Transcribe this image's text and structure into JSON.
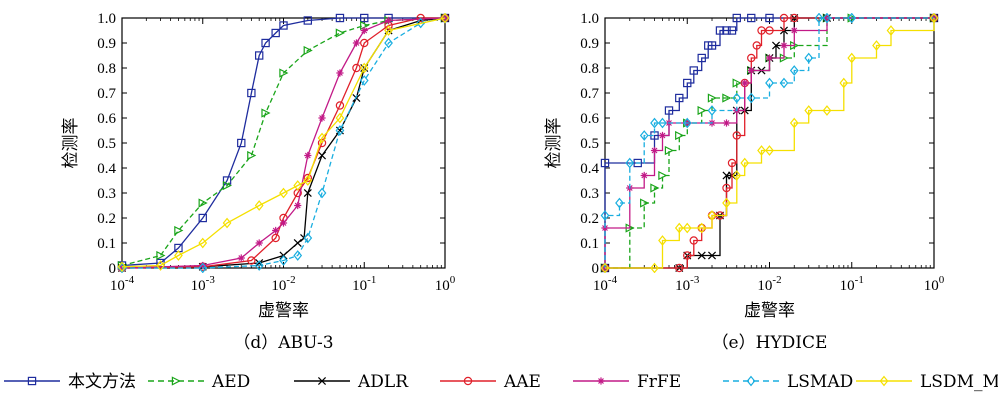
{
  "x_ticks": [
    {
      "base": "10",
      "exp": "-4"
    },
    {
      "base": "10",
      "exp": "-3"
    },
    {
      "base": "10",
      "exp": "-2"
    },
    {
      "base": "10",
      "exp": "-1"
    },
    {
      "base": "10",
      "exp": "0"
    }
  ],
  "y_ticks": [
    "0",
    "0.1",
    "0.2",
    "0.3",
    "0.4",
    "0.5",
    "0.6",
    "0.7",
    "0.8",
    "0.9",
    "1.0"
  ],
  "legend": [
    {
      "label": "本文方法",
      "color": "#1f2d9e",
      "marker": "square"
    },
    {
      "label": "AED",
      "color": "#1aa51a",
      "marker": "triangle",
      "dash": true
    },
    {
      "label": "ADLR",
      "color": "#000000",
      "marker": "x"
    },
    {
      "label": "AAE",
      "color": "#e0202a",
      "marker": "circle"
    },
    {
      "label": "FrFE",
      "color": "#c21a87",
      "marker": "star"
    },
    {
      "label": "LSMAD",
      "color": "#19aee0",
      "marker": "diamond",
      "dash": true
    },
    {
      "label": "LSDM_Mog",
      "color": "#f5e000",
      "marker": "diamond"
    }
  ],
  "chart_data": [
    {
      "type": "line",
      "caption": "（d）ABU-3",
      "xlabel": "虚警率",
      "ylabel": "检测率",
      "xscale": "log",
      "xlim": [
        0.0001,
        1
      ],
      "ylim": [
        0,
        1
      ],
      "series": [
        {
          "name": "本文方法",
          "x": [
            0.0001,
            0.0003,
            0.0005,
            0.001,
            0.002,
            0.003,
            0.004,
            0.005,
            0.006,
            0.008,
            0.01,
            0.02,
            0.05,
            0.1,
            0.2,
            1
          ],
          "y": [
            0.01,
            0.02,
            0.08,
            0.2,
            0.35,
            0.5,
            0.7,
            0.85,
            0.9,
            0.94,
            0.97,
            0.99,
            1,
            1,
            1,
            1
          ]
        },
        {
          "name": "AED",
          "x": [
            0.0001,
            0.0003,
            0.0005,
            0.001,
            0.002,
            0.004,
            0.006,
            0.01,
            0.02,
            0.05,
            0.1,
            0.2,
            1
          ],
          "y": [
            0.01,
            0.05,
            0.15,
            0.26,
            0.33,
            0.45,
            0.62,
            0.78,
            0.87,
            0.94,
            0.97,
            0.99,
            1
          ]
        },
        {
          "name": "ADLR",
          "x": [
            0.0001,
            0.001,
            0.005,
            0.01,
            0.015,
            0.018,
            0.02,
            0.03,
            0.05,
            0.08,
            0.1,
            0.2,
            0.5,
            1
          ],
          "y": [
            0,
            0.005,
            0.02,
            0.05,
            0.1,
            0.12,
            0.3,
            0.45,
            0.55,
            0.68,
            0.8,
            0.95,
            0.99,
            1
          ]
        },
        {
          "name": "AAE",
          "x": [
            0.0001,
            0.001,
            0.004,
            0.008,
            0.01,
            0.015,
            0.02,
            0.03,
            0.05,
            0.08,
            0.1,
            0.2,
            0.5,
            1
          ],
          "y": [
            0,
            0.005,
            0.03,
            0.12,
            0.2,
            0.3,
            0.36,
            0.5,
            0.65,
            0.8,
            0.9,
            0.97,
            1,
            1
          ]
        },
        {
          "name": "FrFE",
          "x": [
            0.0001,
            0.001,
            0.003,
            0.005,
            0.008,
            0.01,
            0.015,
            0.02,
            0.03,
            0.05,
            0.08,
            0.1,
            0.2,
            1
          ],
          "y": [
            0,
            0.01,
            0.04,
            0.1,
            0.15,
            0.18,
            0.25,
            0.45,
            0.6,
            0.78,
            0.9,
            0.95,
            0.99,
            1
          ]
        },
        {
          "name": "LSMAD",
          "x": [
            0.0001,
            0.001,
            0.005,
            0.01,
            0.015,
            0.02,
            0.03,
            0.05,
            0.1,
            0.2,
            0.5,
            1
          ],
          "y": [
            0,
            0,
            0.01,
            0.03,
            0.05,
            0.12,
            0.3,
            0.55,
            0.75,
            0.9,
            0.98,
            1
          ]
        },
        {
          "name": "LSDM_Mog",
          "x": [
            0.0001,
            0.0003,
            0.0005,
            0.001,
            0.002,
            0.005,
            0.01,
            0.015,
            0.02,
            0.03,
            0.05,
            0.1,
            0.2,
            1
          ],
          "y": [
            0.005,
            0.01,
            0.05,
            0.1,
            0.18,
            0.25,
            0.3,
            0.33,
            0.35,
            0.52,
            0.6,
            0.8,
            0.95,
            1
          ]
        }
      ]
    },
    {
      "type": "line",
      "caption": "（e）HYDICE",
      "xlabel": "虚警率",
      "ylabel": "检测率",
      "xscale": "log",
      "xlim": [
        0.0001,
        1
      ],
      "ylim": [
        0,
        1
      ],
      "series": [
        {
          "name": "本文方法",
          "x": [
            0.0001,
            0.0001,
            0.00025,
            0.0004,
            0.0006,
            0.0008,
            0.001,
            0.0012,
            0.0015,
            0.0018,
            0.002,
            0.0025,
            0.003,
            0.0035,
            0.004,
            0.006,
            0.01,
            1
          ],
          "y": [
            0,
            0.42,
            0.42,
            0.53,
            0.63,
            0.68,
            0.74,
            0.79,
            0.84,
            0.89,
            0.89,
            0.95,
            0.95,
            0.95,
            1,
            1,
            1,
            1
          ]
        },
        {
          "name": "AED",
          "x": [
            0.0001,
            0.0002,
            0.0003,
            0.0004,
            0.0005,
            0.0006,
            0.0008,
            0.001,
            0.0015,
            0.002,
            0.003,
            0.004,
            0.006,
            0.01,
            0.015,
            0.02,
            0.05,
            0.1,
            1
          ],
          "y": [
            0,
            0.16,
            0.26,
            0.32,
            0.37,
            0.47,
            0.53,
            0.58,
            0.63,
            0.68,
            0.68,
            0.74,
            0.79,
            0.84,
            0.84,
            0.89,
            1,
            1,
            1
          ]
        },
        {
          "name": "ADLR",
          "x": [
            0.0001,
            0.0008,
            0.001,
            0.0015,
            0.002,
            0.0025,
            0.003,
            0.0035,
            0.004,
            0.005,
            0.006,
            0.008,
            0.01,
            0.012,
            0.015,
            0.02,
            0.05,
            1
          ],
          "y": [
            0,
            0,
            0.05,
            0.05,
            0.05,
            0.21,
            0.37,
            0.37,
            0.63,
            0.63,
            0.79,
            0.79,
            0.84,
            0.89,
            0.95,
            1,
            1,
            1
          ]
        },
        {
          "name": "AAE",
          "x": [
            0.0001,
            0.0008,
            0.001,
            0.0012,
            0.0015,
            0.002,
            0.0025,
            0.003,
            0.0035,
            0.004,
            0.005,
            0.006,
            0.007,
            0.008,
            0.01,
            0.015,
            0.02,
            1
          ],
          "y": [
            0,
            0,
            0.05,
            0.11,
            0.16,
            0.21,
            0.21,
            0.32,
            0.42,
            0.53,
            0.74,
            0.84,
            0.89,
            0.95,
            0.95,
            1,
            1,
            1
          ]
        },
        {
          "name": "FrFE",
          "x": [
            0.0001,
            0.0001,
            0.0002,
            0.0003,
            0.0004,
            0.0005,
            0.0006,
            0.001,
            0.002,
            0.003,
            0.004,
            0.005,
            0.006,
            0.01,
            0.015,
            0.02,
            0.05,
            1
          ],
          "y": [
            0,
            0.16,
            0.32,
            0.37,
            0.47,
            0.53,
            0.58,
            0.58,
            0.58,
            0.58,
            0.63,
            0.74,
            0.79,
            0.84,
            0.89,
            0.95,
            1,
            1
          ]
        },
        {
          "name": "LSMAD",
          "x": [
            0.0001,
            0.0001,
            0.00015,
            0.0002,
            0.0003,
            0.0004,
            0.0005,
            0.001,
            0.002,
            0.004,
            0.006,
            0.01,
            0.015,
            0.02,
            0.03,
            0.04,
            0.05,
            0.1,
            1
          ],
          "y": [
            0,
            0.21,
            0.26,
            0.42,
            0.53,
            0.58,
            0.58,
            0.58,
            0.63,
            0.68,
            0.68,
            0.74,
            0.74,
            0.79,
            0.84,
            1,
            1,
            1,
            1
          ]
        },
        {
          "name": "LSDM_Mog",
          "x": [
            0.0001,
            0.0004,
            0.0005,
            0.0008,
            0.001,
            0.0015,
            0.002,
            0.003,
            0.004,
            0.005,
            0.008,
            0.01,
            0.02,
            0.03,
            0.05,
            0.08,
            0.1,
            0.2,
            0.3,
            1
          ],
          "y": [
            0,
            0,
            0.11,
            0.16,
            0.16,
            0.16,
            0.21,
            0.26,
            0.37,
            0.42,
            0.47,
            0.47,
            0.58,
            0.63,
            0.63,
            0.74,
            0.84,
            0.89,
            0.95,
            1
          ]
        }
      ]
    }
  ]
}
